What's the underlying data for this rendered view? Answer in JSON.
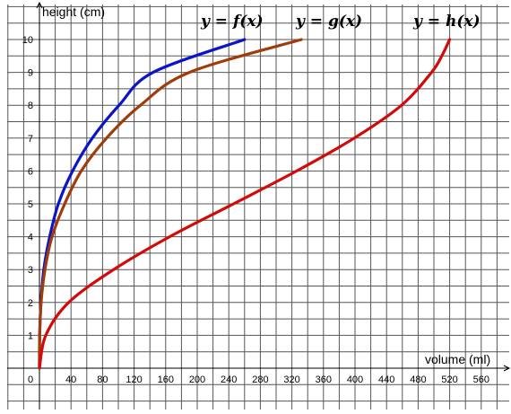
{
  "chart_data": {
    "type": "line",
    "xlabel": "volume (ml)",
    "ylabel": "height (cm)",
    "xlim": [
      0,
      570
    ],
    "ylim": [
      0,
      10.9
    ],
    "x_ticks": [
      0,
      40,
      80,
      120,
      160,
      200,
      240,
      280,
      320,
      360,
      400,
      440,
      480,
      520,
      560
    ],
    "y_ticks": [
      1,
      2,
      3,
      4,
      5,
      6,
      7,
      8,
      9,
      10
    ],
    "x_tick_labels": [
      "0",
      "40",
      "80",
      "120",
      "160",
      "200",
      "240",
      "280",
      "320",
      "360",
      "400",
      "440",
      "480",
      "520",
      "560"
    ],
    "y_tick_labels": [
      "1",
      "2",
      "3",
      "4",
      "5",
      "6",
      "7",
      "8",
      "9",
      "10"
    ],
    "grid": true,
    "series": [
      {
        "name": "y = f(x)",
        "color": "#0a14c8",
        "points": [
          [
            0,
            0
          ],
          [
            0.3,
            1
          ],
          [
            1.9,
            2
          ],
          [
            5.5,
            3
          ],
          [
            13,
            4
          ],
          [
            24,
            5
          ],
          [
            42,
            6
          ],
          [
            67,
            7
          ],
          [
            101,
            8
          ],
          [
            144,
            9
          ],
          [
            260,
            10
          ]
        ]
      },
      {
        "name": "y = g(x)",
        "color": "#a03c0a",
        "points": [
          [
            0,
            0
          ],
          [
            0.3,
            1
          ],
          [
            2.1,
            2
          ],
          [
            7,
            3
          ],
          [
            16,
            4
          ],
          [
            32,
            5
          ],
          [
            53,
            6
          ],
          [
            85,
            7
          ],
          [
            128,
            8
          ],
          [
            190,
            9
          ],
          [
            332,
            10
          ]
        ]
      },
      {
        "name": "y = h(x)",
        "color": "#d20a0a",
        "points": [
          [
            0,
            0
          ],
          [
            8,
            1
          ],
          [
            37,
            2
          ],
          [
            94,
            3
          ],
          [
            165,
            4
          ],
          [
            246,
            5
          ],
          [
            326,
            6
          ],
          [
            399,
            7
          ],
          [
            459,
            8
          ],
          [
            497,
            9
          ],
          [
            510,
            9.5
          ],
          [
            520,
            10
          ]
        ]
      }
    ]
  }
}
